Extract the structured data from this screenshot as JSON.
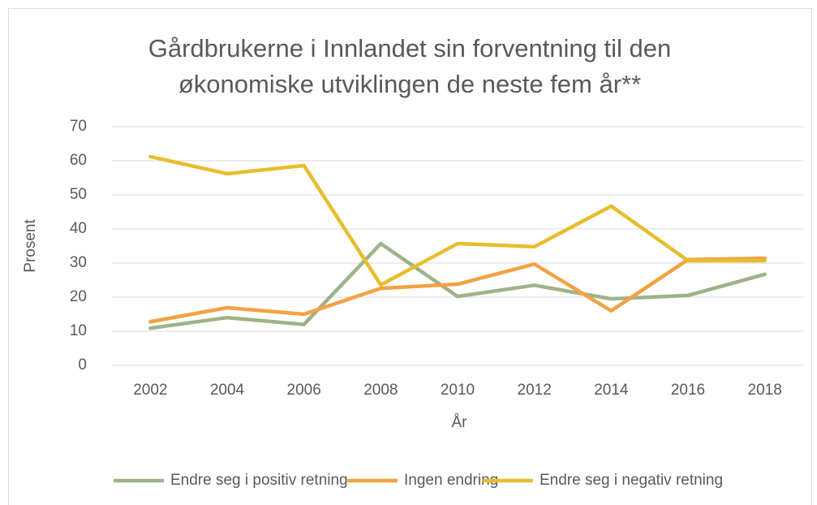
{
  "chart_data": {
    "type": "line",
    "title": "Gårdbrukerne i Innlandet sin forventning til den økonomiske utviklingen de neste fem år**",
    "x_label": "År",
    "y_label": "Prosent",
    "categories": [
      "2002",
      "2004",
      "2006",
      "2008",
      "2010",
      "2012",
      "2014",
      "2016",
      "2018"
    ],
    "series": [
      {
        "name": "Endre seg i positiv retning",
        "color": "#9eb387",
        "values": [
          10.9,
          14,
          12,
          35.7,
          20.2,
          23.5,
          19.5,
          20.5,
          26.7
        ]
      },
      {
        "name": "Ingen endring",
        "color": "#f4a142",
        "values": [
          12.8,
          16.9,
          15,
          22.6,
          23.8,
          29.7,
          16,
          31,
          31.4
        ]
      },
      {
        "name": "Endre seg i negativ retning",
        "color": "#e8bd2c",
        "values": [
          61.2,
          56.2,
          58.6,
          23.6,
          35.7,
          34.8,
          46.7,
          30.7,
          30.7
        ]
      }
    ],
    "ylim": [
      0,
      70
    ],
    "yticks": [
      0,
      10,
      20,
      30,
      40,
      50,
      60,
      70
    ],
    "grid": true,
    "legend": "bottom"
  }
}
